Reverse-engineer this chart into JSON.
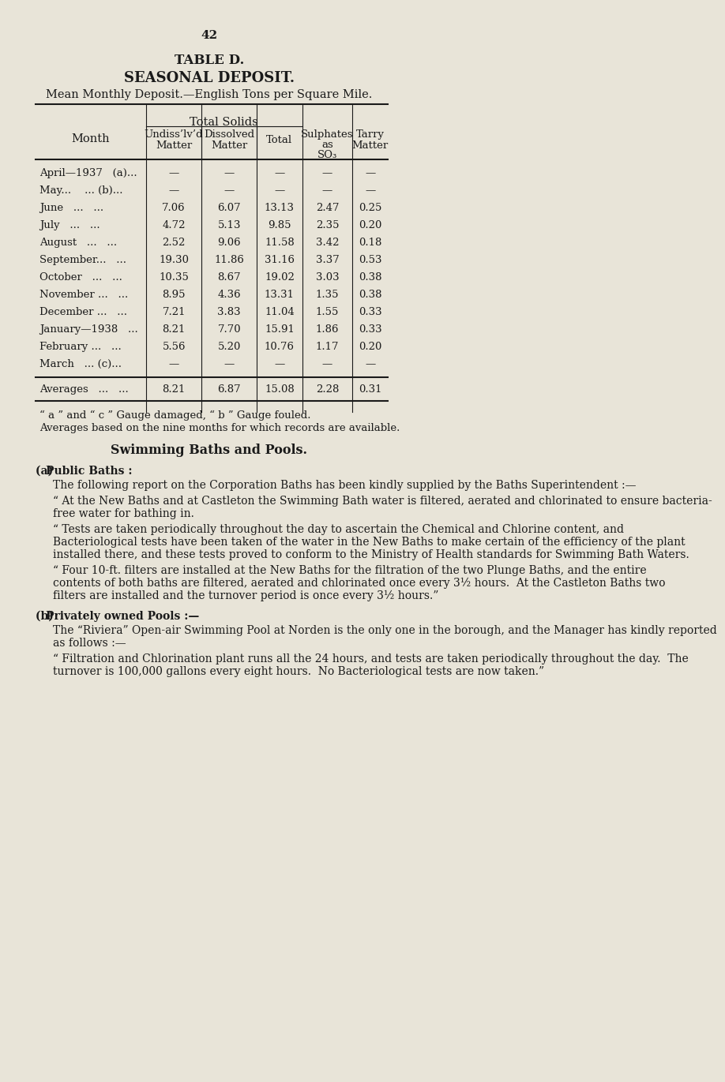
{
  "page_number": "42",
  "title1": "TABLE D.",
  "title2": "SEASONAL DEPOSIT.",
  "title3": "Mean Monthly Deposit.—English Tons per Square Mile.",
  "bg_color": "#e8e4d8",
  "text_color": "#1a1a1a",
  "col_header_row1": [
    "",
    "Total Solids",
    "",
    "Sulphates",
    "Tarry"
  ],
  "col_header_row2": [
    "Month",
    "Undiss’lv’d Matter",
    "Dissolved Matter",
    "Total",
    "as SO₃",
    "Matter"
  ],
  "table_rows": [
    [
      "April—1937   (a)...",
      "—",
      "—",
      "—",
      "—",
      "—"
    ],
    [
      "May...    ... (b)...",
      "—",
      "—",
      "—",
      "—",
      "—"
    ],
    [
      "June   ...   ...",
      "7.06",
      "6.07",
      "13.13",
      "2.47",
      "0.25"
    ],
    [
      "July   ...   ...",
      "4.72",
      "5.13",
      "9.85",
      "2.35",
      "0.20"
    ],
    [
      "August   ...   ...",
      "2.52",
      "9.06",
      "11.58",
      "3.42",
      "0.18"
    ],
    [
      "September...   ...",
      "19.30",
      "11.86",
      "31.16",
      "3.37",
      "0.53"
    ],
    [
      "October   ...   ...",
      "10.35",
      "8.67",
      "19.02",
      "3.03",
      "0.38"
    ],
    [
      "November ...   ...",
      "8.95",
      "4.36",
      "13.31",
      "1.35",
      "0.38"
    ],
    [
      "December ...   ...",
      "7.21",
      "3.83",
      "11.04",
      "1.55",
      "0.33"
    ],
    [
      "January—1938   ...",
      "8.21",
      "7.70",
      "15.91",
      "1.86",
      "0.33"
    ],
    [
      "February ...   ...",
      "5.56",
      "5.20",
      "10.76",
      "1.17",
      "0.20"
    ],
    [
      "March   ... (c)...",
      "—",
      "—",
      "—",
      "—",
      "—"
    ]
  ],
  "averages_row": [
    "Averages   ...   ...",
    "8.21",
    "6.87",
    "15.08",
    "2.28",
    "0.31"
  ],
  "footnote1": "“ a ” and “ c ” Gauge damaged, “ b ” Gauge fouled.",
  "footnote2": "Averages based on the nine months for which records are available.",
  "section_title": "Swimming Baths and Pools.",
  "section_a_label": "(a) Public Baths :",
  "section_a_intro": "The following report on the Corporation Baths has been kindly supplied by the Baths Superintendent :—",
  "section_a_para1": "“ At the New Baths and at Castleton the Swimming Bath water is filtered, aerated and chlorinated to ensure bacteria-free water for bathing in.",
  "section_a_para2": "“ Tests are taken periodically throughout the day to ascertain the Chemical and Chlorine content, and Bacteriological tests have been taken of the water in the New Baths to make certain of the efficiency of the plant installed there, and these tests proved to conform to the Ministry of Health standards for Swimming Bath Waters.",
  "section_a_para3": "“ Four 10-ft. filters are installed at the New Baths for the filtration of the two Plunge Baths, and the entire contents of both baths are filtered, aerated and chlorinated once every 3½ hours.  At the Castleton Baths two filters are installed and the turnover period is once every 3½ hours.”",
  "section_b_label": "(b) Privately owned Pools :—",
  "section_b_intro": "The “Riviera” Open-air Swimming Pool at Norden is the only one in the borough, and the Manager has kindly reported as follows :—",
  "section_b_para1": "“ Filtration and Chlorination plant runs all the 24 hours, and tests are taken periodically throughout the day.  The turnover is 100,000 gallons every eight hours.  No Bacteriological tests are now taken.”"
}
